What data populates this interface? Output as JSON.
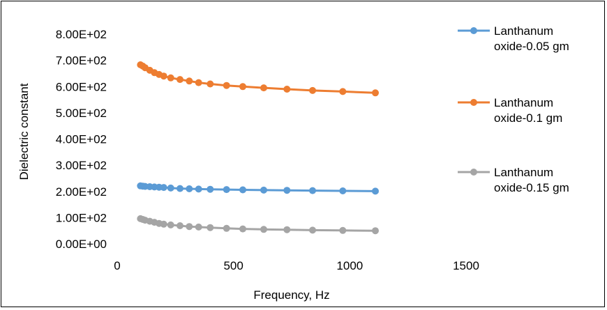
{
  "chart_data": {
    "type": "line",
    "title": "",
    "xlabel": "Frequency, Hz",
    "ylabel": "Dielectric constant",
    "xlim": [
      0,
      1500
    ],
    "ylim": [
      0,
      800
    ],
    "x_ticks": [
      {
        "value": 0,
        "label": "0"
      },
      {
        "value": 500,
        "label": "500"
      },
      {
        "value": 1000,
        "label": "1000"
      },
      {
        "value": 1500,
        "label": "1500"
      }
    ],
    "y_ticks": [
      {
        "value": 0,
        "label": "0.00E+00"
      },
      {
        "value": 100,
        "label": "1.00E+02"
      },
      {
        "value": 200,
        "label": "2.00E+02"
      },
      {
        "value": 300,
        "label": "3.00E+02"
      },
      {
        "value": 400,
        "label": "4.00E+02"
      },
      {
        "value": 500,
        "label": "5.00E+02"
      },
      {
        "value": 600,
        "label": "6.00E+02"
      },
      {
        "value": 700,
        "label": "7.00E+02"
      },
      {
        "value": 800,
        "label": "8.00E+02"
      }
    ],
    "grid": false,
    "legend": "right",
    "x": [
      100,
      110,
      120,
      140,
      160,
      180,
      200,
      230,
      270,
      310,
      350,
      400,
      470,
      540,
      630,
      730,
      840,
      970,
      1110
    ],
    "series": [
      {
        "name_lines": [
          "Lanthanum",
          "oxide-0.05 gm"
        ],
        "color": "#5b9bd5",
        "values": [
          221,
          220,
          219,
          218,
          217,
          216,
          215,
          213,
          211,
          210,
          209,
          208,
          207,
          206,
          205,
          204,
          203,
          202,
          201
        ]
      },
      {
        "name_lines": [
          "Lanthanum",
          "oxide-0.1 gm"
        ],
        "color": "#ed7d31",
        "values": [
          683,
          678,
          672,
          662,
          653,
          646,
          640,
          633,
          627,
          621,
          615,
          610,
          604,
          600,
          595,
          590,
          585,
          581,
          576
        ]
      },
      {
        "name_lines": [
          "Lanthanum",
          "oxide-0.15 gm"
        ],
        "color": "#a5a5a5",
        "values": [
          96,
          93,
          90,
          86,
          82,
          78,
          75,
          72,
          69,
          66,
          64,
          62,
          59,
          57,
          55,
          54,
          52,
          51,
          50
        ]
      }
    ]
  }
}
